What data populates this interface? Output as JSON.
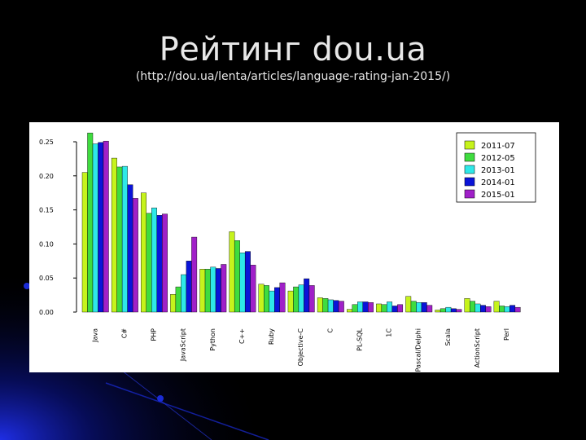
{
  "slide": {
    "title": "Рейтинг dou.ua",
    "subtitle": "(http://dou.ua/lenta/articles/language-rating-jan-2015/)"
  },
  "colors": {
    "background": "#000000",
    "accent_blue": "#1a2bd6"
  },
  "chart_data": {
    "type": "bar",
    "title": "",
    "xlabel": "",
    "ylabel": "",
    "ylim": [
      0,
      0.27
    ],
    "yticks": [
      "0.00",
      "0.05",
      "0.10",
      "0.15",
      "0.20",
      "0.25"
    ],
    "grid": false,
    "legend_position": "top-right",
    "categories": [
      "Java",
      "C#",
      "PHP",
      "JavaScript",
      "Python",
      "C++",
      "Ruby",
      "Objective-C",
      "C",
      "PL-SQL",
      "1C",
      "Pascal/Delphi",
      "Scala",
      "ActionScript",
      "Perl"
    ],
    "series": [
      {
        "name": "2011-07",
        "color": "#c6f31c",
        "values": [
          0.205,
          0.226,
          0.175,
          0.026,
          0.063,
          0.118,
          0.041,
          0.031,
          0.021,
          0.004,
          0.012,
          0.023,
          0.003,
          0.02,
          0.016
        ]
      },
      {
        "name": "2012-05",
        "color": "#3fdc3f",
        "values": [
          0.263,
          0.213,
          0.145,
          0.037,
          0.063,
          0.105,
          0.039,
          0.037,
          0.02,
          0.011,
          0.011,
          0.016,
          0.005,
          0.016,
          0.009
        ]
      },
      {
        "name": "2013-01",
        "color": "#2ee8e8",
        "values": [
          0.247,
          0.214,
          0.153,
          0.055,
          0.066,
          0.087,
          0.031,
          0.04,
          0.018,
          0.015,
          0.015,
          0.014,
          0.007,
          0.012,
          0.008
        ]
      },
      {
        "name": "2014-01",
        "color": "#0a14d8",
        "values": [
          0.249,
          0.187,
          0.142,
          0.075,
          0.064,
          0.089,
          0.036,
          0.049,
          0.017,
          0.015,
          0.009,
          0.014,
          0.005,
          0.01,
          0.01
        ]
      },
      {
        "name": "2015-01",
        "color": "#a020c8",
        "values": [
          0.251,
          0.167,
          0.144,
          0.11,
          0.07,
          0.069,
          0.043,
          0.039,
          0.016,
          0.014,
          0.011,
          0.01,
          0.004,
          0.008,
          0.007
        ]
      }
    ]
  }
}
